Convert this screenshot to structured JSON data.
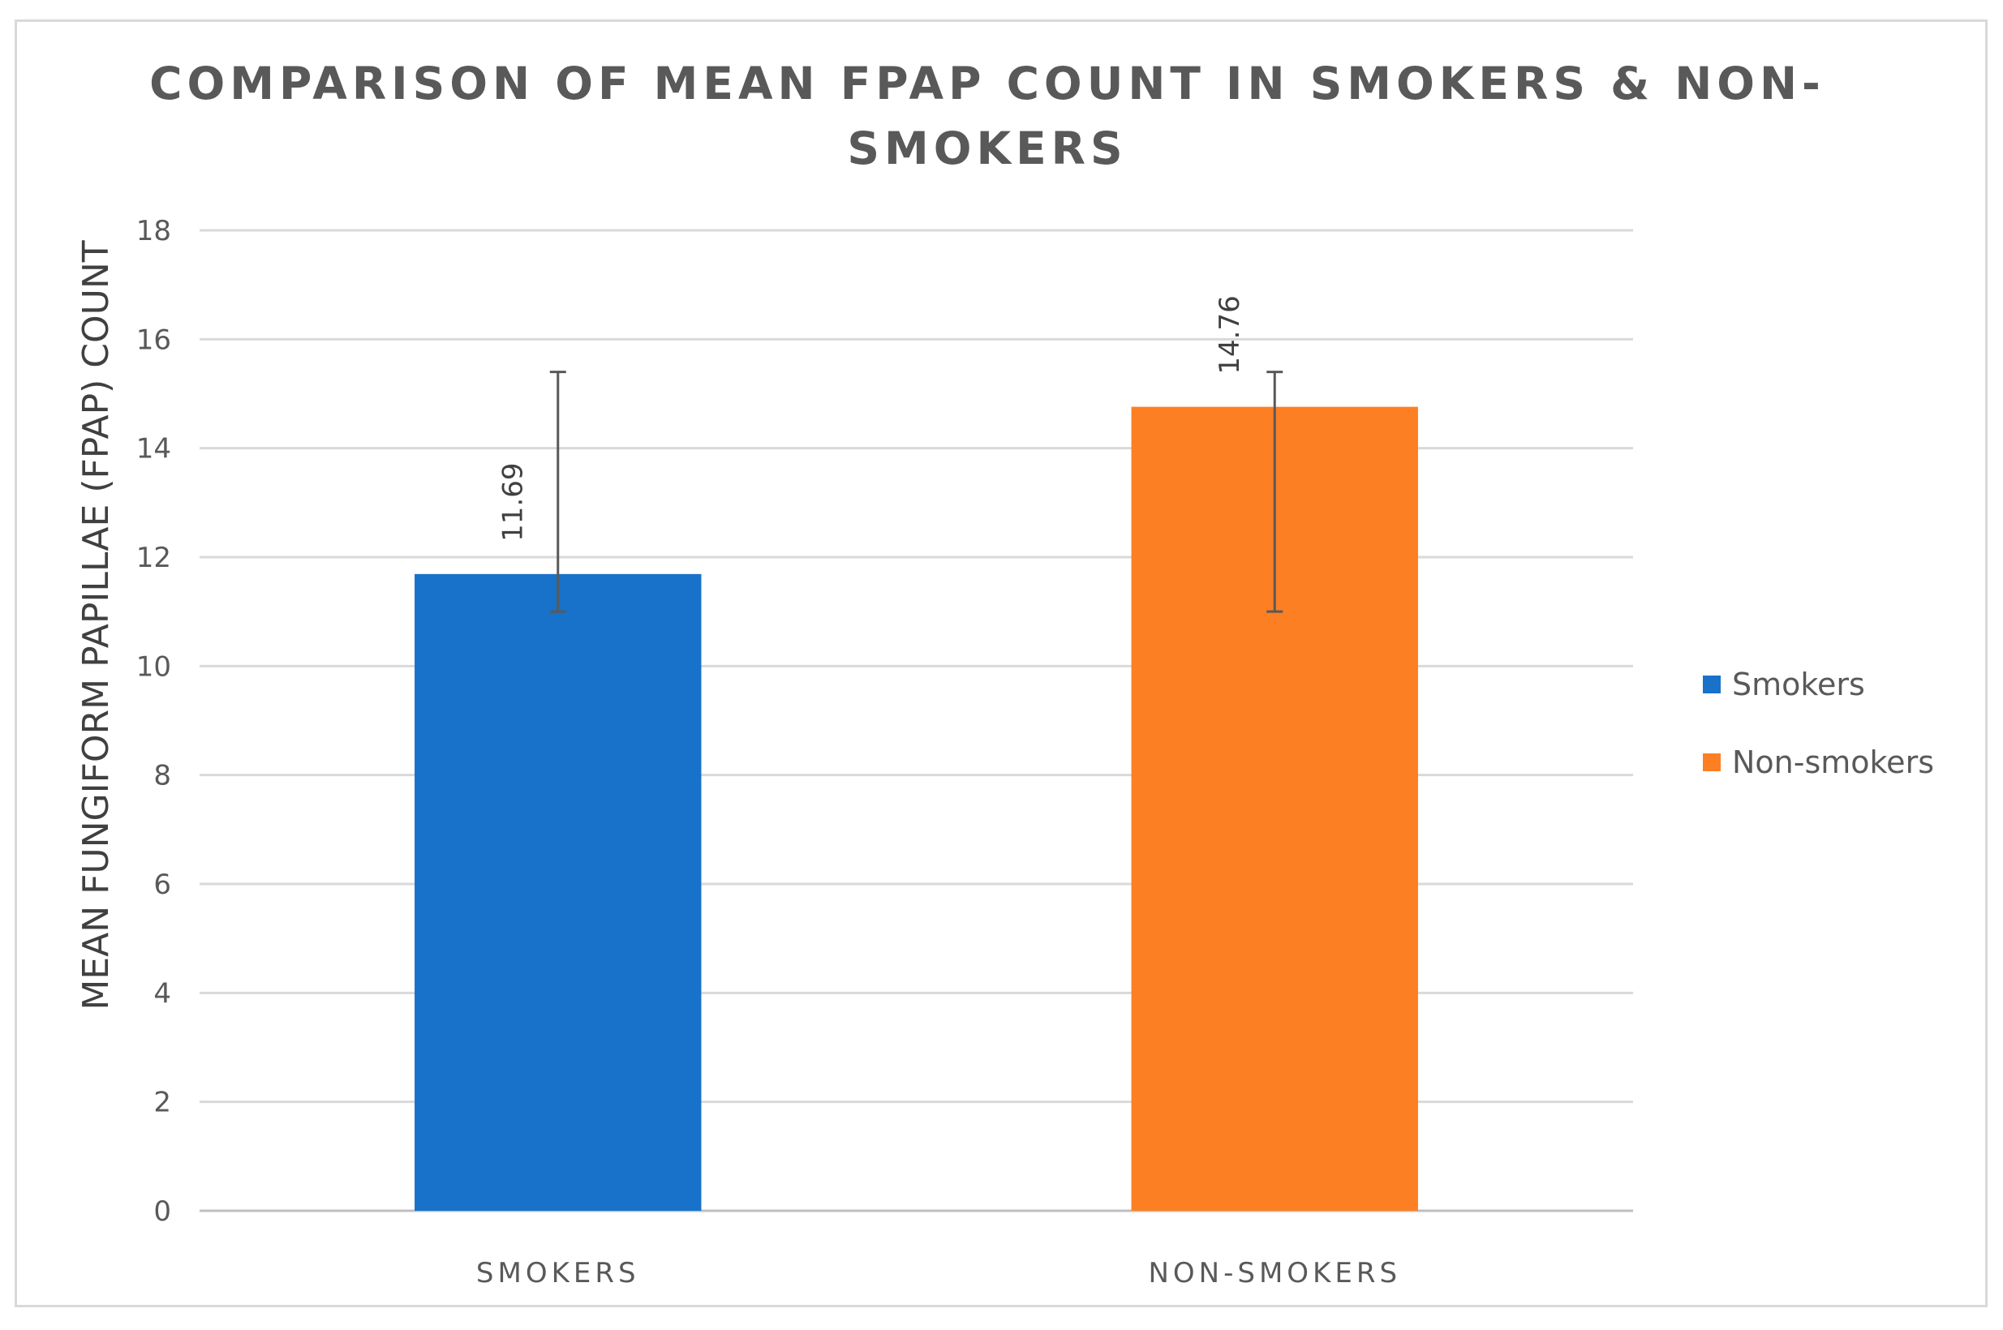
{
  "chart_data": {
    "type": "bar",
    "title_lines": [
      "COMPARISON OF MEAN FPAP COUNT IN SMOKERS & NON-",
      "SMOKERS"
    ],
    "ylabel": "MEAN FUNGIFORM PAPILLAE (FPAP) COUNT",
    "xlabel": "",
    "categories": [
      "SMOKERS",
      "NON-SMOKERS"
    ],
    "values": [
      11.69,
      14.76
    ],
    "data_labels": [
      "11.69",
      "14.76"
    ],
    "error_bars": [
      {
        "low": 11.0,
        "high": 15.4
      },
      {
        "low": 11.0,
        "high": 15.4
      }
    ],
    "colors": [
      "#1872c9",
      "#fd7f23"
    ],
    "ylim": [
      0,
      18
    ],
    "yticks": [
      "0",
      "2",
      "4",
      "6",
      "8",
      "10",
      "12",
      "14",
      "16",
      "18"
    ],
    "grid": true,
    "legend": {
      "position": "right",
      "entries": [
        {
          "label": "Smokers",
          "color": "#1872c9"
        },
        {
          "label": "Non-smokers",
          "color": "#fd7f23"
        }
      ]
    }
  }
}
